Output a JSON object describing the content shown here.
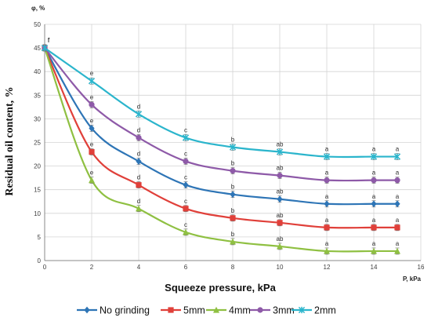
{
  "chart_data": {
    "type": "line",
    "title": "",
    "xlabel": "Squeeze pressure, kPa",
    "ylabel": "Residual oil content, %",
    "x_unit_label": "P, kPa",
    "y_unit_label": "φ, %",
    "xlim": [
      0,
      16
    ],
    "ylim": [
      0,
      50
    ],
    "x_ticks": [
      0,
      2,
      4,
      6,
      8,
      10,
      12,
      14,
      16
    ],
    "y_ticks": [
      0,
      5,
      10,
      15,
      20,
      25,
      30,
      35,
      40,
      45,
      50
    ],
    "grid": true,
    "legend_position": "bottom",
    "x": [
      0,
      2,
      4,
      6,
      8,
      10,
      12,
      14,
      15
    ],
    "series": [
      {
        "name": "No grinding",
        "color": "#2e75b6",
        "marker": "diamond",
        "values": [
          45,
          28,
          21,
          16,
          14,
          13,
          12,
          12,
          12
        ]
      },
      {
        "name": "5mm",
        "color": "#e0403a",
        "marker": "square",
        "values": [
          45,
          23,
          16,
          11,
          9,
          8,
          7,
          7,
          7
        ]
      },
      {
        "name": "4mm",
        "color": "#8fc042",
        "marker": "triangle",
        "values": [
          45,
          17,
          11,
          6,
          4,
          3,
          2,
          2,
          2
        ]
      },
      {
        "name": "3mm",
        "color": "#8e5aa8",
        "marker": "circle",
        "values": [
          45,
          33,
          26,
          21,
          19,
          18,
          17,
          17,
          17
        ]
      },
      {
        "name": "2mm",
        "color": "#2bb5cc",
        "marker": "cross",
        "values": [
          45,
          38,
          31,
          26,
          24,
          23,
          22,
          22,
          22
        ]
      }
    ],
    "significance_labels": [
      {
        "x": 0,
        "text": "f"
      },
      {
        "x": 2,
        "text": "e"
      },
      {
        "x": 4,
        "text": "d"
      },
      {
        "x": 6,
        "text": "c"
      },
      {
        "x": 8,
        "text": "b"
      },
      {
        "x": 10,
        "text": "ab"
      },
      {
        "x": 12,
        "text": "a"
      },
      {
        "x": 14,
        "text": "a"
      },
      {
        "x": 15,
        "text": "a"
      }
    ]
  }
}
